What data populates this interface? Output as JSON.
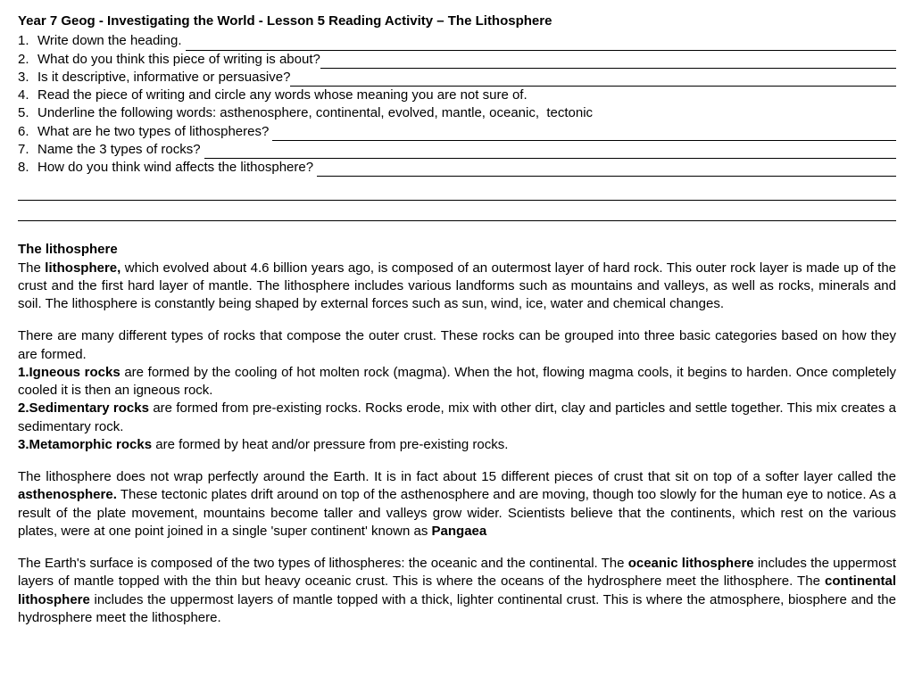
{
  "title": "Year 7 Geog - Investigating the World - Lesson 5 Reading Activity – The Lithosphere",
  "questions": [
    {
      "num": "1.",
      "text": "Write down the heading. ",
      "blank": true
    },
    {
      "num": "2.",
      "text": "What do you think this piece of writing is about?",
      "blank": true
    },
    {
      "num": "3.",
      "text": "Is it descriptive, informative or persuasive?",
      "blank": true
    },
    {
      "num": "4.",
      "text": "Read the piece of writing and circle any words whose meaning you are not sure of.",
      "blank": false
    },
    {
      "num": "5.",
      "text": "Underline the following words: asthenosphere, continental, evolved, mantle, oceanic,  tectonic",
      "blank": false
    },
    {
      "num": "6.",
      "text": "What are he two types of lithospheres? ",
      "blank": true
    },
    {
      "num": "7.",
      "text": "Name the 3 types of rocks? ",
      "blank": true
    },
    {
      "num": "8.",
      "text": "How do you think wind affects the lithosphere? ",
      "blank": true
    }
  ],
  "extraBlankLines": 2,
  "passage": {
    "heading": "The lithosphere",
    "p1_pre": "The ",
    "p1_b1": "lithosphere,",
    "p1_post": " which evolved about 4.6 billion years ago, is composed of an outermost layer of hard rock. This outer rock layer is made up of the crust and the first hard layer of mantle. The lithosphere includes various landforms such as mountains and valleys, as well as rocks, minerals and soil. The lithosphere is constantly being shaped by external forces such as sun, wind, ice, water and chemical changes.",
    "p2": "There are many different types of rocks that compose the outer crust. These rocks can be grouped into three basic categories based on how they are formed.",
    "rock1_b": "1.Igneous rocks",
    "rock1_t": " are formed by the cooling of hot molten rock (magma). When the hot, flowing magma cools, it begins to harden. Once completely cooled it is then an igneous rock.",
    "rock2_b": "2.Sedimentary rocks",
    "rock2_t": " are formed from pre-existing rocks. Rocks erode, mix with other dirt, clay and particles and settle together. This mix creates a sedimentary rock.",
    "rock3_b": "3.Metamorphic rocks",
    "rock3_t": " are formed by heat and/or pressure from pre-existing rocks.",
    "p3_pre": "The lithosphere does not wrap perfectly around the Earth. It is in fact about 15 different pieces of crust that sit on top of a softer layer called the ",
    "p3_b1": "asthenosphere.",
    "p3_mid": " These tectonic plates drift around on top of the asthenosphere and are moving, though too slowly for the human eye to notice. As a result of the plate movement, mountains become taller and valleys grow wider. Scientists believe that the continents, which rest on the various plates, were at one point joined in a single 'super continent' known as ",
    "p3_b2": "Pangaea",
    "p4_pre": "The Earth's surface is composed of the two types of lithospheres: the oceanic and the continental. The ",
    "p4_b1": "oceanic lithosphere",
    "p4_mid1": " includes the uppermost layers of mantle topped with the thin but heavy oceanic crust. This is where the oceans of the hydrosphere meet the lithosphere. The ",
    "p4_b2": "continental lithosphere",
    "p4_mid2": " includes the uppermost layers of mantle topped with a thick, lighter continental crust. This is where the atmosphere, biosphere and the hydrosphere meet the lithosphere."
  }
}
